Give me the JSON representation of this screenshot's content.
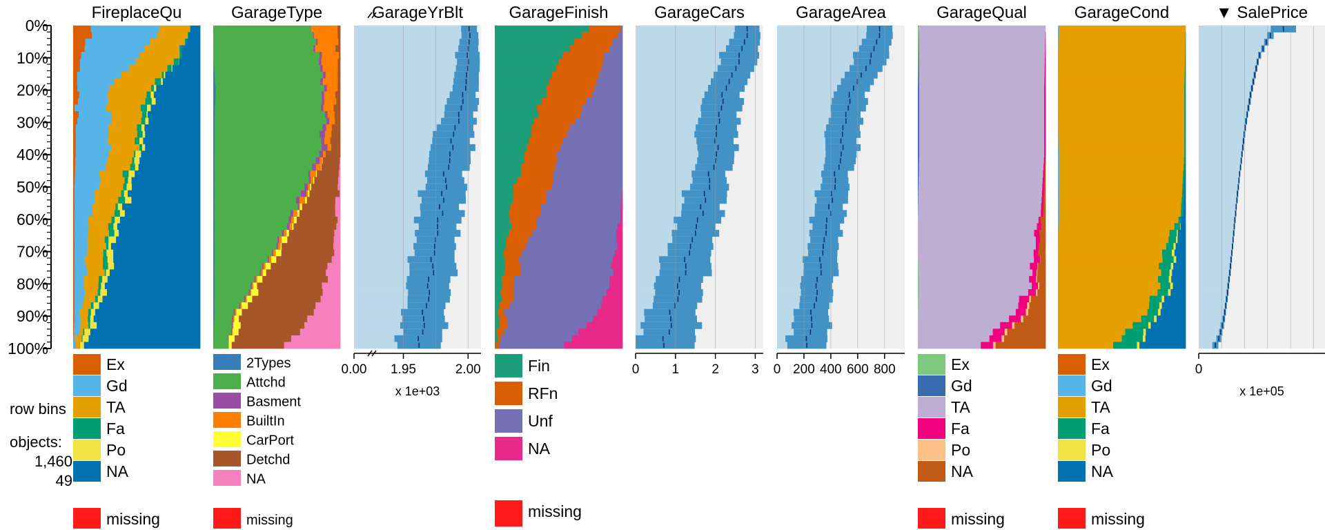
{
  "y_axis": {
    "tick_labels": [
      "0%",
      "10%",
      "20%",
      "30%",
      "40%",
      "50%",
      "60%",
      "70%",
      "80%",
      "90%",
      "100%"
    ]
  },
  "sidebar": {
    "row_bins_label": "row bins",
    "objects_label": "objects:",
    "objects_count": "1,460",
    "bins_count": "49"
  },
  "colors": {
    "missing": "#ff1a1a",
    "numeric_bar": "#4292c6",
    "numeric_bg": "#bcd9ea",
    "numeric_rest": "#efefef",
    "median_line": "#08306b"
  },
  "missing_label": "missing",
  "chart_data": [
    {
      "type": "bar",
      "variable": "FireplaceQu",
      "title": "FireplaceQu",
      "categories": [
        {
          "label": "Ex",
          "color": "#d95f02"
        },
        {
          "label": "Gd",
          "color": "#56b4e9"
        },
        {
          "label": "TA",
          "color": "#e69f00"
        },
        {
          "label": "Fa",
          "color": "#009e73"
        },
        {
          "label": "Po",
          "color": "#f0e442"
        },
        {
          "label": "NA",
          "color": "#0072b2"
        }
      ],
      "proportion_breakpoints": [
        {
          "row_pct": 0,
          "shares": [
            0.16,
            0.52,
            0.24,
            0.0,
            0.0,
            0.08
          ]
        },
        {
          "row_pct": 10,
          "shares": [
            0.06,
            0.46,
            0.3,
            0.02,
            0.0,
            0.16
          ]
        },
        {
          "row_pct": 20,
          "shares": [
            0.03,
            0.24,
            0.33,
            0.04,
            0.02,
            0.34
          ]
        },
        {
          "row_pct": 30,
          "shares": [
            0.02,
            0.26,
            0.22,
            0.05,
            0.03,
            0.42
          ]
        },
        {
          "row_pct": 40,
          "shares": [
            0.02,
            0.26,
            0.2,
            0.03,
            0.03,
            0.46
          ]
        },
        {
          "row_pct": 50,
          "shares": [
            0.01,
            0.18,
            0.2,
            0.04,
            0.03,
            0.54
          ]
        },
        {
          "row_pct": 60,
          "shares": [
            0.01,
            0.12,
            0.18,
            0.03,
            0.04,
            0.62
          ]
        },
        {
          "row_pct": 70,
          "shares": [
            0.01,
            0.1,
            0.14,
            0.03,
            0.04,
            0.68
          ]
        },
        {
          "row_pct": 80,
          "shares": [
            0.01,
            0.08,
            0.12,
            0.02,
            0.04,
            0.73
          ]
        },
        {
          "row_pct": 90,
          "shares": [
            0.01,
            0.05,
            0.06,
            0.02,
            0.04,
            0.82
          ]
        },
        {
          "row_pct": 100,
          "shares": [
            0.0,
            0.02,
            0.02,
            0.0,
            0.04,
            0.92
          ]
        }
      ],
      "legend_missing": true
    },
    {
      "type": "bar",
      "variable": "GarageType",
      "title": "GarageType",
      "categories": [
        {
          "label": "2Types",
          "color": "#377eb8"
        },
        {
          "label": "Attchd",
          "color": "#4daf4a"
        },
        {
          "label": "Basment",
          "color": "#984ea3"
        },
        {
          "label": "BuiltIn",
          "color": "#ff7f00"
        },
        {
          "label": "CarPort",
          "color": "#ffff33"
        },
        {
          "label": "Detchd",
          "color": "#a65628"
        },
        {
          "label": "NA",
          "color": "#f781bf"
        }
      ],
      "proportion_breakpoints": [
        {
          "row_pct": 0,
          "shares": [
            0.0,
            0.74,
            0.0,
            0.22,
            0.0,
            0.04,
            0.0
          ]
        },
        {
          "row_pct": 10,
          "shares": [
            0.0,
            0.84,
            0.02,
            0.12,
            0.0,
            0.02,
            0.0
          ]
        },
        {
          "row_pct": 20,
          "shares": [
            0.02,
            0.84,
            0.02,
            0.1,
            0.0,
            0.02,
            0.0
          ]
        },
        {
          "row_pct": 30,
          "shares": [
            0.01,
            0.86,
            0.02,
            0.06,
            0.0,
            0.05,
            0.0
          ]
        },
        {
          "row_pct": 40,
          "shares": [
            0.01,
            0.82,
            0.03,
            0.04,
            0.0,
            0.1,
            0.0
          ]
        },
        {
          "row_pct": 50,
          "shares": [
            0.01,
            0.7,
            0.03,
            0.03,
            0.01,
            0.2,
            0.02
          ]
        },
        {
          "row_pct": 60,
          "shares": [
            0.01,
            0.6,
            0.02,
            0.02,
            0.02,
            0.3,
            0.03
          ]
        },
        {
          "row_pct": 70,
          "shares": [
            0.01,
            0.46,
            0.01,
            0.02,
            0.03,
            0.41,
            0.06
          ]
        },
        {
          "row_pct": 80,
          "shares": [
            0.01,
            0.3,
            0.01,
            0.01,
            0.04,
            0.51,
            0.12
          ]
        },
        {
          "row_pct": 90,
          "shares": [
            0.01,
            0.14,
            0.01,
            0.01,
            0.05,
            0.56,
            0.22
          ]
        },
        {
          "row_pct": 100,
          "shares": [
            0.0,
            0.12,
            0.0,
            0.0,
            0.03,
            0.4,
            0.45
          ]
        }
      ],
      "legend_missing": true
    },
    {
      "type": "bar",
      "variable": "GarageYrBlt",
      "title": "GarageYrBlt",
      "x_tick_labels": [
        "0.00",
        "1.95",
        "2.00"
      ],
      "x_scale_note": "x 1e+03",
      "axis_break": true,
      "mean_breakpoints": [
        {
          "row_pct": 0,
          "mean": 2001.5,
          "sd": 7
        },
        {
          "row_pct": 20,
          "mean": 1998,
          "sd": 10
        },
        {
          "row_pct": 40,
          "mean": 1985,
          "sd": 16
        },
        {
          "row_pct": 60,
          "mean": 1978,
          "sd": 17
        },
        {
          "row_pct": 80,
          "mean": 1970,
          "sd": 17
        },
        {
          "row_pct": 100,
          "mean": 1962,
          "sd": 16
        }
      ],
      "legend_missing": false
    },
    {
      "type": "bar",
      "variable": "GarageFinish",
      "title": "GarageFinish",
      "categories": [
        {
          "label": "Fin",
          "color": "#1b9e77"
        },
        {
          "label": "RFn",
          "color": "#d95f02"
        },
        {
          "label": "Unf",
          "color": "#7570b3"
        },
        {
          "label": "NA",
          "color": "#e7298a"
        }
      ],
      "proportion_breakpoints": [
        {
          "row_pct": 0,
          "shares": [
            0.74,
            0.24,
            0.02,
            0.0
          ]
        },
        {
          "row_pct": 10,
          "shares": [
            0.52,
            0.34,
            0.14,
            0.0
          ]
        },
        {
          "row_pct": 20,
          "shares": [
            0.4,
            0.38,
            0.22,
            0.0
          ]
        },
        {
          "row_pct": 30,
          "shares": [
            0.3,
            0.32,
            0.38,
            0.0
          ]
        },
        {
          "row_pct": 40,
          "shares": [
            0.24,
            0.24,
            0.52,
            0.0
          ]
        },
        {
          "row_pct": 50,
          "shares": [
            0.16,
            0.28,
            0.56,
            0.0
          ]
        },
        {
          "row_pct": 60,
          "shares": [
            0.12,
            0.22,
            0.64,
            0.02
          ]
        },
        {
          "row_pct": 70,
          "shares": [
            0.08,
            0.14,
            0.72,
            0.06
          ]
        },
        {
          "row_pct": 80,
          "shares": [
            0.05,
            0.1,
            0.75,
            0.1
          ]
        },
        {
          "row_pct": 90,
          "shares": [
            0.03,
            0.06,
            0.69,
            0.22
          ]
        },
        {
          "row_pct": 100,
          "shares": [
            0.02,
            0.03,
            0.47,
            0.48
          ]
        }
      ],
      "legend_missing": true
    },
    {
      "type": "bar",
      "variable": "GarageCars",
      "title": "GarageCars",
      "x_tick_labels": [
        "0",
        "1",
        "2",
        "3"
      ],
      "xlim": [
        0,
        3.2
      ],
      "mean_breakpoints": [
        {
          "row_pct": 0,
          "mean": 2.85,
          "sd": 0.35
        },
        {
          "row_pct": 10,
          "mean": 2.6,
          "sd": 0.45
        },
        {
          "row_pct": 20,
          "mean": 2.25,
          "sd": 0.45
        },
        {
          "row_pct": 30,
          "mean": 2.05,
          "sd": 0.5
        },
        {
          "row_pct": 40,
          "mean": 2.0,
          "sd": 0.45
        },
        {
          "row_pct": 50,
          "mean": 1.8,
          "sd": 0.5
        },
        {
          "row_pct": 60,
          "mean": 1.6,
          "sd": 0.55
        },
        {
          "row_pct": 70,
          "mean": 1.35,
          "sd": 0.6
        },
        {
          "row_pct": 80,
          "mean": 1.1,
          "sd": 0.6
        },
        {
          "row_pct": 90,
          "mean": 0.9,
          "sd": 0.65
        },
        {
          "row_pct": 100,
          "mean": 0.7,
          "sd": 0.75
        }
      ],
      "legend_missing": false
    },
    {
      "type": "bar",
      "variable": "GarageArea",
      "title": "GarageArea",
      "x_tick_labels": [
        "0",
        "200",
        "400",
        "600",
        "800"
      ],
      "xlim": [
        0,
        950
      ],
      "mean_breakpoints": [
        {
          "row_pct": 0,
          "mean": 780,
          "sd": 110
        },
        {
          "row_pct": 10,
          "mean": 700,
          "sd": 120
        },
        {
          "row_pct": 20,
          "mean": 560,
          "sd": 120
        },
        {
          "row_pct": 30,
          "mean": 500,
          "sd": 120
        },
        {
          "row_pct": 40,
          "mean": 470,
          "sd": 115
        },
        {
          "row_pct": 50,
          "mean": 420,
          "sd": 110
        },
        {
          "row_pct": 60,
          "mean": 380,
          "sd": 120
        },
        {
          "row_pct": 70,
          "mean": 340,
          "sd": 120
        },
        {
          "row_pct": 80,
          "mean": 300,
          "sd": 120
        },
        {
          "row_pct": 90,
          "mean": 260,
          "sd": 130
        },
        {
          "row_pct": 100,
          "mean": 220,
          "sd": 140
        }
      ],
      "legend_missing": false
    },
    {
      "type": "bar",
      "variable": "GarageQual",
      "title": "GarageQual",
      "categories": [
        {
          "label": "Ex",
          "color": "#7fc97f"
        },
        {
          "label": "Gd",
          "color": "#386cb0"
        },
        {
          "label": "TA",
          "color": "#beaed4"
        },
        {
          "label": "Fa",
          "color": "#f0027f"
        },
        {
          "label": "Po",
          "color": "#fdc086"
        },
        {
          "label": "NA",
          "color": "#bf5b17"
        }
      ],
      "proportion_breakpoints": [
        {
          "row_pct": 0,
          "shares": [
            0.01,
            0.0,
            0.99,
            0.0,
            0.0,
            0.0
          ]
        },
        {
          "row_pct": 20,
          "shares": [
            0.0,
            0.01,
            0.98,
            0.01,
            0.0,
            0.0
          ]
        },
        {
          "row_pct": 40,
          "shares": [
            0.0,
            0.01,
            0.98,
            0.01,
            0.0,
            0.0
          ]
        },
        {
          "row_pct": 60,
          "shares": [
            0.0,
            0.0,
            0.96,
            0.02,
            0.0,
            0.02
          ]
        },
        {
          "row_pct": 70,
          "shares": [
            0.0,
            0.0,
            0.91,
            0.04,
            0.0,
            0.05
          ]
        },
        {
          "row_pct": 80,
          "shares": [
            0.01,
            0.0,
            0.88,
            0.05,
            0.01,
            0.05
          ]
        },
        {
          "row_pct": 90,
          "shares": [
            0.0,
            0.0,
            0.72,
            0.1,
            0.02,
            0.16
          ]
        },
        {
          "row_pct": 100,
          "shares": [
            0.0,
            0.0,
            0.46,
            0.1,
            0.02,
            0.42
          ]
        }
      ],
      "legend_missing": true
    },
    {
      "type": "bar",
      "variable": "GarageCond",
      "title": "GarageCond",
      "categories": [
        {
          "label": "Ex",
          "color": "#d95f02"
        },
        {
          "label": "Gd",
          "color": "#56b4e9"
        },
        {
          "label": "TA",
          "color": "#e69f00"
        },
        {
          "label": "Fa",
          "color": "#009e73"
        },
        {
          "label": "Po",
          "color": "#f0e442"
        },
        {
          "label": "NA",
          "color": "#0072b2"
        }
      ],
      "proportion_breakpoints": [
        {
          "row_pct": 0,
          "shares": [
            0.0,
            0.01,
            0.99,
            0.0,
            0.0,
            0.0
          ]
        },
        {
          "row_pct": 20,
          "shares": [
            0.0,
            0.0,
            0.99,
            0.01,
            0.0,
            0.0
          ]
        },
        {
          "row_pct": 40,
          "shares": [
            0.0,
            0.01,
            0.98,
            0.01,
            0.0,
            0.0
          ]
        },
        {
          "row_pct": 60,
          "shares": [
            0.0,
            0.01,
            0.95,
            0.02,
            0.0,
            0.02
          ]
        },
        {
          "row_pct": 70,
          "shares": [
            0.0,
            0.0,
            0.82,
            0.08,
            0.02,
            0.08
          ]
        },
        {
          "row_pct": 80,
          "shares": [
            0.0,
            0.0,
            0.8,
            0.08,
            0.02,
            0.1
          ]
        },
        {
          "row_pct": 90,
          "shares": [
            0.0,
            0.0,
            0.66,
            0.1,
            0.02,
            0.22
          ]
        },
        {
          "row_pct": 100,
          "shares": [
            0.0,
            0.0,
            0.4,
            0.2,
            0.02,
            0.38
          ]
        }
      ],
      "legend_missing": true
    },
    {
      "type": "bar",
      "variable": "SalePrice",
      "title": "SalePrice",
      "sorted": true,
      "sort_marker": "▼",
      "x_tick_labels": [
        "0"
      ],
      "x_scale_note": "x 1e+05",
      "xlim": [
        0,
        5.5
      ],
      "mean_breakpoints": [
        {
          "row_pct": 0,
          "mean": 4.3,
          "sd": 1.1
        },
        {
          "row_pct": 2,
          "mean": 3.2,
          "sd": 0.2
        },
        {
          "row_pct": 5,
          "mean": 2.95,
          "sd": 0.1
        },
        {
          "row_pct": 10,
          "mean": 2.6,
          "sd": 0.05
        },
        {
          "row_pct": 20,
          "mean": 2.3,
          "sd": 0.05
        },
        {
          "row_pct": 30,
          "mean": 2.05,
          "sd": 0.04
        },
        {
          "row_pct": 40,
          "mean": 1.88,
          "sd": 0.03
        },
        {
          "row_pct": 50,
          "mean": 1.72,
          "sd": 0.03
        },
        {
          "row_pct": 60,
          "mean": 1.58,
          "sd": 0.03
        },
        {
          "row_pct": 70,
          "mean": 1.45,
          "sd": 0.03
        },
        {
          "row_pct": 80,
          "mean": 1.3,
          "sd": 0.04
        },
        {
          "row_pct": 90,
          "mean": 1.12,
          "sd": 0.05
        },
        {
          "row_pct": 98,
          "mean": 0.85,
          "sd": 0.1
        },
        {
          "row_pct": 100,
          "mean": 0.6,
          "sd": 0.15
        }
      ],
      "legend_missing": false
    }
  ]
}
